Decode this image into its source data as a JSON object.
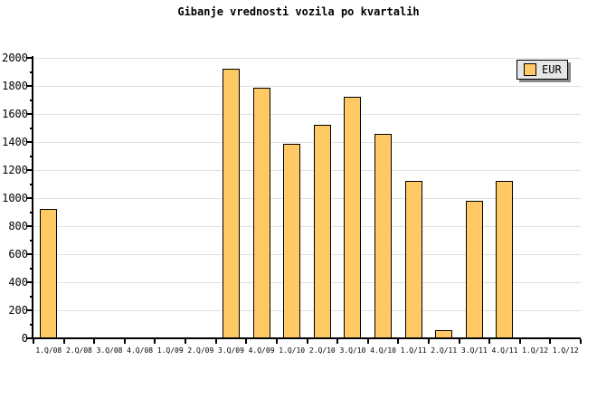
{
  "chart_data": {
    "type": "bar",
    "title": "Gibanje vrednosti vozila po kvartalih",
    "categories": [
      "1.Q/08",
      "2.Q/08",
      "3.Q/08",
      "4.Q/08",
      "1.Q/09",
      "2.Q/09",
      "3.Q/09",
      "4.Q/09",
      "1.Q/10",
      "2.Q/10",
      "3.Q/10",
      "4.Q/10",
      "1.Q/11",
      "2.Q/11",
      "3.Q/11",
      "4.Q/11",
      "1.Q/12",
      "1.Q/12"
    ],
    "series": [
      {
        "name": "EUR",
        "values": [
          920,
          0,
          0,
          0,
          0,
          0,
          1920,
          1785,
          1390,
          1520,
          1725,
          1455,
          1120,
          55,
          980,
          1120,
          0,
          0
        ]
      }
    ],
    "xlabel": "",
    "ylabel": "",
    "ylim": [
      0,
      2000
    ],
    "ytick_step": 200,
    "y_minor_step": 100,
    "grid": "horizontal",
    "legend_position": "top-right",
    "colors": {
      "bar_fill": "#FFC966",
      "bar_border": "#000000",
      "grid": "#E0E0E0",
      "axis": "#000000",
      "legend_bg": "#E6E6E6",
      "legend_shadow": "#8B8B8B",
      "background": "#FFFFFF",
      "text": "#000000"
    }
  }
}
